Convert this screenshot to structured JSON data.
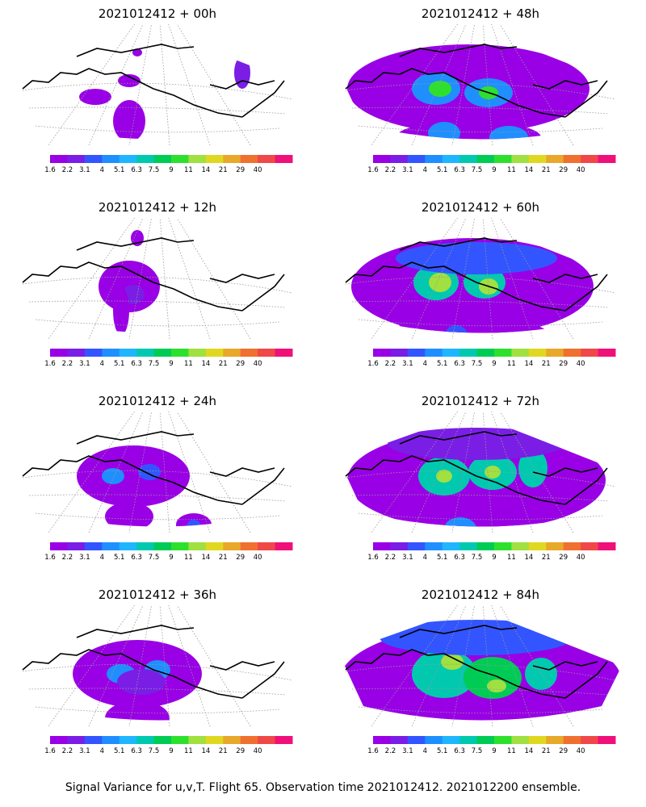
{
  "caption": "Signal Variance for u,v,T. Flight 65. Observation time 2021012412. 2021012200 ensemble.",
  "colorbar": {
    "labels": [
      "1.6",
      "2.2",
      "3.1",
      "4",
      "5.1",
      "6.3",
      "7.5",
      "9",
      "11",
      "14",
      "21",
      "29",
      "40"
    ],
    "colors": [
      "#9900e6",
      "#7a1ee6",
      "#3355ff",
      "#1f8fff",
      "#1fb6ff",
      "#00c9b0",
      "#00cc55",
      "#2ee02e",
      "#a0e040",
      "#e0d820",
      "#e8a82a",
      "#f07030",
      "#f04848",
      "#f0107a"
    ]
  },
  "panels": [
    {
      "title": "2021012412 + 00h",
      "level": 0
    },
    {
      "title": "2021012412 + 12h",
      "level": 1
    },
    {
      "title": "2021012412 + 24h",
      "level": 2
    },
    {
      "title": "2021012412 + 36h",
      "level": 3
    },
    {
      "title": "2021012412 + 48h",
      "level": 4
    },
    {
      "title": "2021012412 + 60h",
      "level": 5
    },
    {
      "title": "2021012412 + 72h",
      "level": 6
    },
    {
      "title": "2021012412 + 84h",
      "level": 7
    }
  ]
}
